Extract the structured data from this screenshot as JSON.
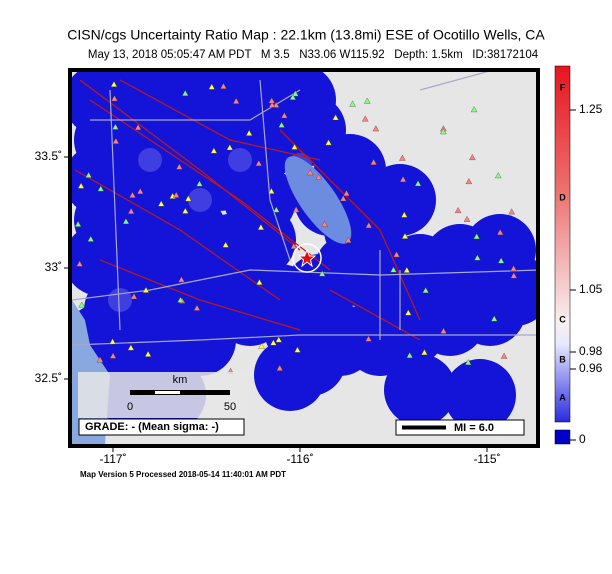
{
  "header": {
    "title": "CISN/cgs Uncertainty Ratio Map : 22.1km (13.8mi) ESE of Ocotillo Wells, CA",
    "subtitle": "May 13, 2018 05:05:47 AM PDT   M 3.5   N33.06 W115.92   Depth: 1.5km   ID:38172104"
  },
  "map": {
    "lat_ticks": [
      {
        "value": 33.5,
        "label": "33.5˚"
      },
      {
        "value": 33,
        "label": "33˚"
      },
      {
        "value": 32.5,
        "label": "32.5˚"
      }
    ],
    "lon_ticks": [
      {
        "value": -117,
        "label": "-117˚"
      },
      {
        "value": -116,
        "label": "-116˚"
      },
      {
        "value": -115,
        "label": "-115˚"
      }
    ],
    "scale_unit": "km",
    "scale_labels": [
      "0",
      "50"
    ],
    "grade": "GRADE: - (Mean sigma: -)",
    "mi_legend": "MI = 6.0"
  },
  "colorbar": {
    "ticks": [
      1.25,
      1.05,
      0.98,
      0.96,
      0
    ],
    "grades": [
      "F",
      "D",
      "C",
      "B",
      "A"
    ]
  },
  "footer": "Map Version 5 Processed 2018-05-14 11:40:01 AM PDT"
}
